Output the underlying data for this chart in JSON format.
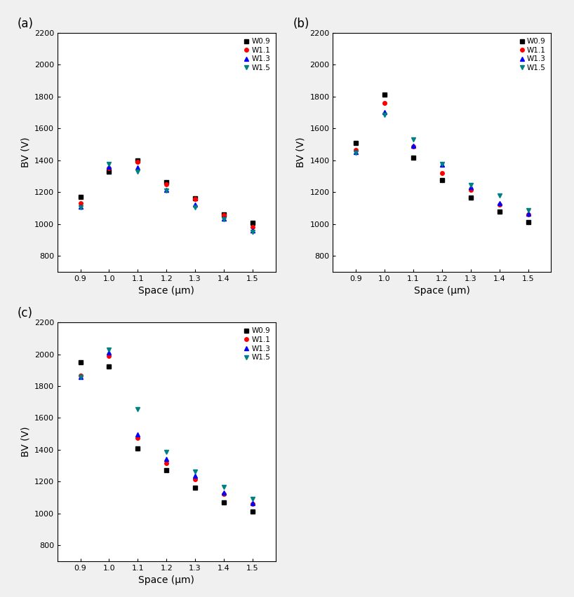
{
  "x": [
    0.9,
    1.0,
    1.1,
    1.2,
    1.3,
    1.4,
    1.5
  ],
  "subplot_a": {
    "W0.9": [
      1170,
      1330,
      1400,
      1260,
      1160,
      1060,
      1005
    ],
    "W1.1": [
      1130,
      1350,
      1390,
      1250,
      1155,
      1055,
      980
    ],
    "W1.3": [
      1110,
      1360,
      1355,
      1215,
      1120,
      1035,
      960
    ],
    "W1.5": [
      1105,
      1375,
      1330,
      1210,
      1105,
      1030,
      950
    ]
  },
  "subplot_b": {
    "W0.9": [
      1510,
      1810,
      1415,
      1275,
      1165,
      1075,
      1010
    ],
    "W1.1": [
      1465,
      1760,
      1485,
      1320,
      1215,
      1120,
      1060
    ],
    "W1.3": [
      1450,
      1700,
      1490,
      1370,
      1230,
      1130,
      1065
    ],
    "W1.5": [
      1445,
      1685,
      1530,
      1375,
      1245,
      1180,
      1085
    ]
  },
  "subplot_c": {
    "W0.9": [
      1950,
      1925,
      1410,
      1270,
      1160,
      1070,
      1010
    ],
    "W1.1": [
      1865,
      1990,
      1475,
      1315,
      1215,
      1120,
      1060
    ],
    "W1.3": [
      1855,
      2010,
      1495,
      1340,
      1235,
      1130,
      1065
    ],
    "W1.5": [
      1855,
      2030,
      1655,
      1385,
      1265,
      1165,
      1090
    ]
  },
  "series_labels": [
    "W0.9",
    "W1.1",
    "W1.3",
    "W1.5"
  ],
  "colors": [
    "black",
    "red",
    "blue",
    "teal"
  ],
  "markers": [
    "s",
    "o",
    "^",
    "v"
  ],
  "ylabel": "BV (V)",
  "xlabel": "Space (μm)",
  "ylim": [
    700,
    2200
  ],
  "xlim": [
    0.82,
    1.58
  ],
  "yticks": [
    800,
    1000,
    1200,
    1400,
    1600,
    1800,
    2000,
    2200
  ],
  "xticks": [
    0.9,
    1.0,
    1.1,
    1.2,
    1.3,
    1.4,
    1.5
  ],
  "panel_labels": [
    "(a)",
    "(b)",
    "(c)"
  ],
  "markersize": 4,
  "bg_color": "#f0f0f0"
}
